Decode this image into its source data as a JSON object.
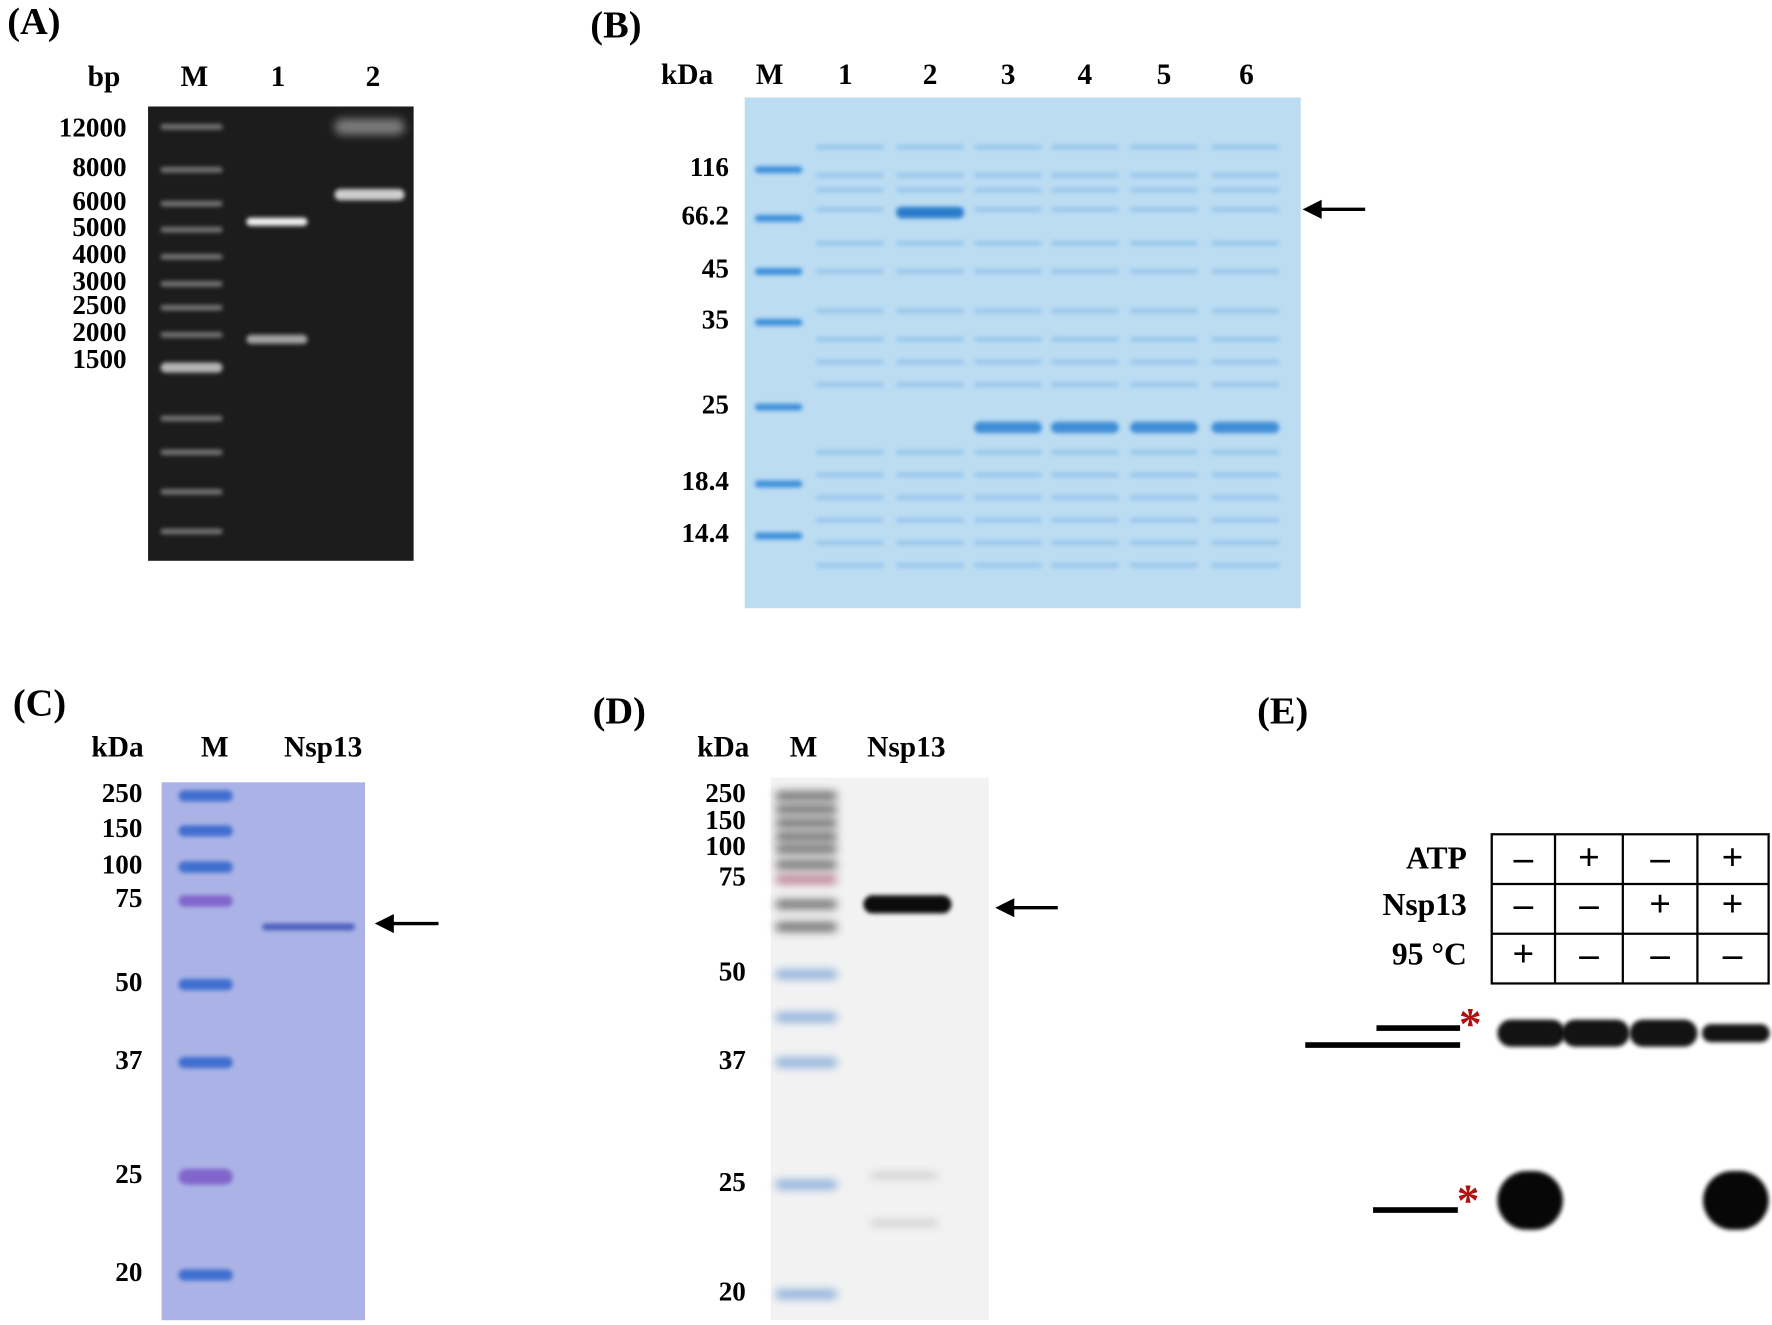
{
  "panels": [
    {
      "label": "(A)",
      "unit": "bp",
      "lanes": [
        "M",
        "1",
        "2"
      ],
      "ladder": [
        "12000",
        "8000",
        "6000",
        "5000",
        "4000",
        "3000",
        "2500",
        "2000",
        "1500"
      ]
    },
    {
      "label": "(B)",
      "unit": "kDa",
      "lanes": [
        "M",
        "1",
        "2",
        "3",
        "4",
        "5",
        "6"
      ],
      "ladder": [
        "116",
        "66.2",
        "45",
        "35",
        "25",
        "18.4",
        "14.4"
      ]
    },
    {
      "label": "(C)",
      "unit": "kDa",
      "lanes": [
        "M",
        "Nsp13"
      ],
      "ladder": [
        "250",
        "150",
        "100",
        "75",
        "50",
        "37",
        "25",
        "20"
      ]
    },
    {
      "label": "(D)",
      "unit": "kDa",
      "lanes": [
        "M",
        "Nsp13"
      ],
      "ladder": [
        "250",
        "150",
        "100",
        "75",
        "50",
        "37",
        "25",
        "20"
      ]
    },
    {
      "label": "(E)",
      "rows": [
        {
          "name": "ATP",
          "signs": [
            "–",
            "+",
            "–",
            "+"
          ]
        },
        {
          "name": "Nsp13",
          "signs": [
            "–",
            "–",
            "+",
            "+"
          ]
        },
        {
          "name": "95 °C",
          "signs": [
            "+",
            "–",
            "–",
            "–"
          ]
        }
      ],
      "marks": [
        "*",
        "*"
      ]
    }
  ]
}
